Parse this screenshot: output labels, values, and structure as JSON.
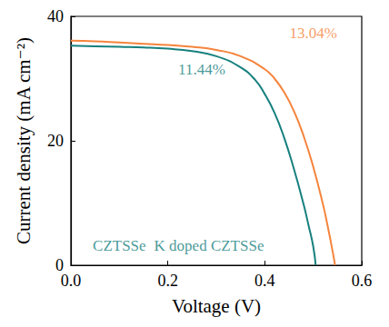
{
  "chart_data": {
    "type": "line",
    "x_label": "Voltage (V)",
    "y_label": "Current density (mA cm⁻²)",
    "xlim": [
      0,
      0.6
    ],
    "xticks": [
      {
        "value": 0,
        "label": "0.0"
      },
      0.2,
      0.4,
      0.6
    ],
    "ylim": [
      0,
      40
    ],
    "yticks": [
      0,
      20,
      40
    ],
    "grid": false,
    "series": [
      {
        "name": "CZTSSe",
        "color": "#16807e",
        "x": [
          0,
          0.05,
          0.1,
          0.15,
          0.2,
          0.25,
          0.3,
          0.35,
          0.38,
          0.4,
          0.42,
          0.44,
          0.46,
          0.48,
          0.49,
          0.5,
          0.505
        ],
        "values": [
          35.3,
          35.2,
          35.1,
          35.0,
          34.8,
          34.4,
          33.6,
          31.8,
          29.8,
          27.5,
          24.5,
          20.5,
          15.5,
          9.8,
          6.5,
          3.0,
          0
        ]
      },
      {
        "name": "K doped CZTSSe",
        "color": "#f5843c",
        "x": [
          0,
          0.05,
          0.1,
          0.15,
          0.2,
          0.25,
          0.3,
          0.35,
          0.4,
          0.42,
          0.44,
          0.46,
          0.48,
          0.5,
          0.52,
          0.53,
          0.54,
          0.545
        ],
        "values": [
          36.1,
          36.0,
          35.8,
          35.6,
          35.4,
          35.1,
          34.6,
          33.6,
          31.5,
          30.0,
          27.8,
          24.8,
          20.8,
          15.8,
          9.8,
          6.2,
          2.2,
          0
        ]
      }
    ],
    "annotations": [
      {
        "text": "11.44%",
        "x": 0.27,
        "y": 31.5,
        "color": "#16807e"
      },
      {
        "text": "13.04%",
        "x": 0.5,
        "y": 37.3,
        "color": "#f5843c"
      },
      {
        "text": "CZTSSe",
        "x": 0.1,
        "y": 3.2,
        "color": "#16807e"
      },
      {
        "text": "K doped CZTSSe",
        "x": 0.285,
        "y": 3.2,
        "color": "#16807e"
      }
    ]
  }
}
